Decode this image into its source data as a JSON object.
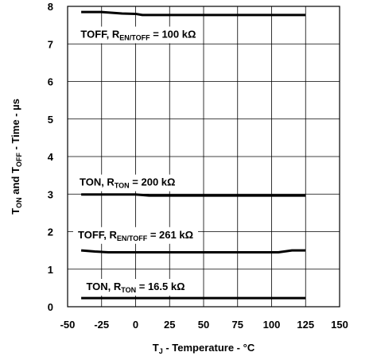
{
  "chart_data": {
    "type": "line",
    "xlabel_main": "T",
    "xlabel_sub": "J",
    "xlabel_rest": " - Temperature - °C",
    "ylabel": {
      "p1": "T",
      "s1": "ON",
      "p2": " and T",
      "s2": "OFF",
      "p3": " - Time - µs"
    },
    "xlim": [
      -50,
      150
    ],
    "ylim": [
      0,
      8
    ],
    "xticks": [
      "-50",
      "-25",
      "0",
      "25",
      "50",
      "75",
      "100",
      "125",
      "150"
    ],
    "yticks": [
      "0",
      "1",
      "2",
      "3",
      "4",
      "5",
      "6",
      "7",
      "8"
    ],
    "grid": true,
    "series": [
      {
        "name": "TOFF, R EN/TOFF = 100 kΩ",
        "label": {
          "pre": "TOFF, R",
          "sub": "EN/TOFF",
          "post": " = 100 kΩ"
        },
        "label_at": {
          "x": 2,
          "y": 7.27
        },
        "x": [
          -40,
          -25,
          -10,
          0,
          5,
          25,
          50,
          75,
          100,
          125
        ],
        "y": [
          7.85,
          7.85,
          7.81,
          7.8,
          7.77,
          7.77,
          7.77,
          7.77,
          7.77,
          7.77
        ]
      },
      {
        "name": "TON, R TON = 200 kΩ",
        "label": {
          "pre": "TON, R",
          "sub": "TON",
          "post": " = 200 kΩ"
        },
        "label_at": {
          "x": -6,
          "y": 3.33
        },
        "x": [
          -40,
          -25,
          0,
          10,
          25,
          50,
          75,
          100,
          125
        ],
        "y": [
          2.99,
          2.99,
          2.99,
          2.96,
          2.96,
          2.96,
          2.96,
          2.96,
          2.96
        ]
      },
      {
        "name": "TOFF, R EN/TOFF = 261 kΩ",
        "label": {
          "pre": "TOFF, R",
          "sub": "EN/TOFF",
          "post": " = 261 kΩ"
        },
        "label_at": {
          "x": 0,
          "y": 1.93
        },
        "x": [
          -40,
          -30,
          -20,
          0,
          25,
          50,
          75,
          100,
          105,
          115,
          125
        ],
        "y": [
          1.5,
          1.47,
          1.45,
          1.45,
          1.45,
          1.45,
          1.45,
          1.45,
          1.45,
          1.5,
          1.5
        ]
      },
      {
        "name": "TON, R TON = 16.5 kΩ",
        "label": {
          "pre": "TON, R",
          "sub": "TON",
          "post": " = 16.5 kΩ"
        },
        "label_at": {
          "x": 0,
          "y": 0.55
        },
        "x": [
          -40,
          125
        ],
        "y": [
          0.23,
          0.23
        ]
      }
    ]
  }
}
